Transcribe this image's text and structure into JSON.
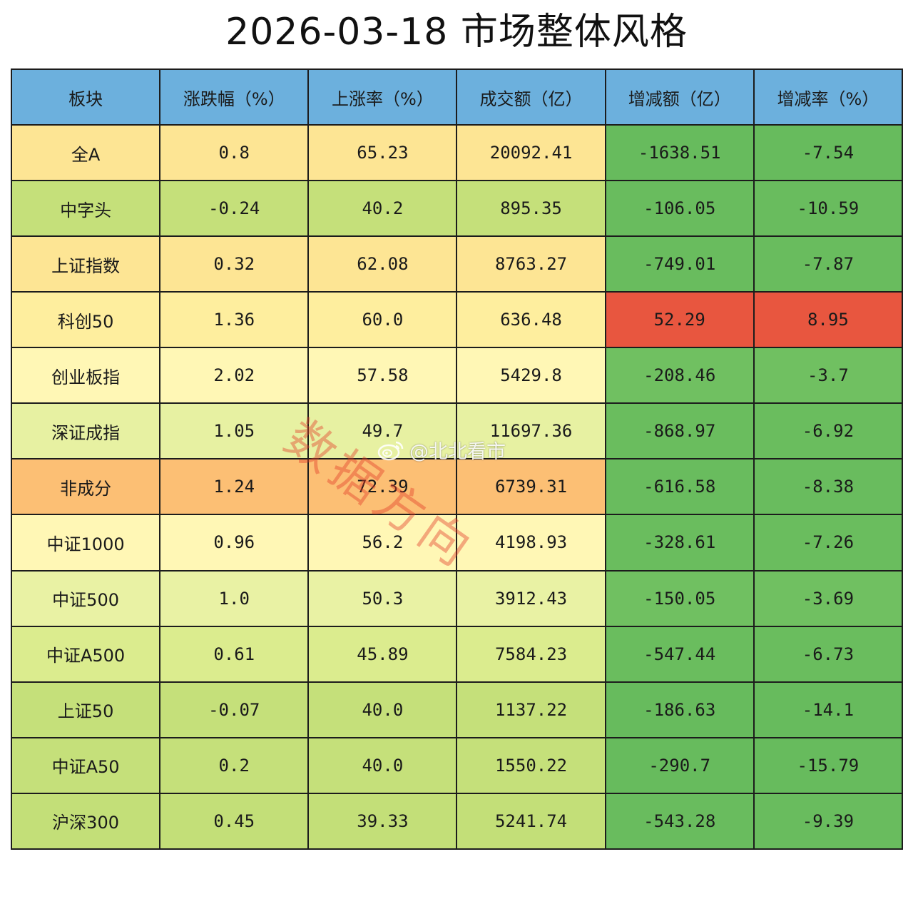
{
  "title": "2026-03-18 市场整体风格",
  "table": {
    "headers": [
      "板块",
      "涨跌幅（%）",
      "上涨率（%）",
      "成交额（亿）",
      "增减额（亿）",
      "增减率（%）"
    ],
    "header_color": "#6cb0dd",
    "rows": [
      {
        "cells": [
          "全A",
          "0.8",
          "65.23",
          "20092.41",
          "-1638.51",
          "-7.54"
        ],
        "colors": [
          "#fde594",
          "#fde594",
          "#fde594",
          "#fde594",
          "#67bb5d",
          "#67bb5d"
        ]
      },
      {
        "cells": [
          "中字头",
          "-0.24",
          "40.2",
          "895.35",
          "-106.05",
          "-10.59"
        ],
        "colors": [
          "#c5e07a",
          "#c5e07a",
          "#c5e07a",
          "#c5e07a",
          "#69bc5e",
          "#69bc5e"
        ]
      },
      {
        "cells": [
          "上证指数",
          "0.32",
          "62.08",
          "8763.27",
          "-749.01",
          "-7.87"
        ],
        "colors": [
          "#fde594",
          "#fde594",
          "#fde594",
          "#fde594",
          "#69bc5e",
          "#69bc5e"
        ]
      },
      {
        "cells": [
          "科创50",
          "1.36",
          "60.0",
          "636.48",
          "52.29",
          "8.95"
        ],
        "colors": [
          "#feee9e",
          "#feee9e",
          "#feee9e",
          "#feee9e",
          "#e8563f",
          "#e8563f"
        ]
      },
      {
        "cells": [
          "创业板指",
          "2.02",
          "57.58",
          "5429.8",
          "-208.46",
          "-3.7"
        ],
        "colors": [
          "#fff7b5",
          "#fff7b5",
          "#fff7b5",
          "#fff7b5",
          "#70c061",
          "#70c061"
        ]
      },
      {
        "cells": [
          "深证成指",
          "1.05",
          "49.7",
          "11697.36",
          "-868.97",
          "-6.92"
        ],
        "colors": [
          "#e7f1a2",
          "#e7f1a2",
          "#e7f1a2",
          "#e7f1a2",
          "#6abd5e",
          "#6abd5e"
        ]
      },
      {
        "cells": [
          "非成分",
          "1.24",
          "72.39",
          "6739.31",
          "-616.58",
          "-8.38"
        ],
        "colors": [
          "#fcbf74",
          "#fcbf74",
          "#fcbf74",
          "#fcbf74",
          "#69bc5e",
          "#69bc5e"
        ]
      },
      {
        "cells": [
          "中证1000",
          "0.96",
          "56.2",
          "4198.93",
          "-328.61",
          "-7.26"
        ],
        "colors": [
          "#fff7b5",
          "#fff7b5",
          "#fff7b5",
          "#fff7b5",
          "#6abd5e",
          "#6abd5e"
        ]
      },
      {
        "cells": [
          "中证500",
          "1.0",
          "50.3",
          "3912.43",
          "-150.05",
          "-3.69"
        ],
        "colors": [
          "#e9f2a4",
          "#e9f2a4",
          "#e9f2a4",
          "#e9f2a4",
          "#70c061",
          "#70c061"
        ]
      },
      {
        "cells": [
          "中证A500",
          "0.61",
          "45.89",
          "7584.23",
          "-547.44",
          "-6.73"
        ],
        "colors": [
          "#dbec8e",
          "#dbec8e",
          "#dbec8e",
          "#dbec8e",
          "#6abd5e",
          "#6abd5e"
        ]
      },
      {
        "cells": [
          "上证50",
          "-0.07",
          "40.0",
          "1137.22",
          "-186.63",
          "-14.1"
        ],
        "colors": [
          "#c5e07a",
          "#c5e07a",
          "#c5e07a",
          "#c5e07a",
          "#67bb5d",
          "#67bb5d"
        ]
      },
      {
        "cells": [
          "中证A50",
          "0.2",
          "40.0",
          "1550.22",
          "-290.7",
          "-15.79"
        ],
        "colors": [
          "#c5e07a",
          "#c5e07a",
          "#c5e07a",
          "#c5e07a",
          "#67bb5d",
          "#67bb5d"
        ]
      },
      {
        "cells": [
          "沪深300",
          "0.45",
          "39.33",
          "5241.74",
          "-543.28",
          "-9.39"
        ],
        "colors": [
          "#c3df78",
          "#c3df78",
          "#c3df78",
          "#c3df78",
          "#69bc5e",
          "#69bc5e"
        ]
      }
    ]
  },
  "watermark": {
    "text": "数据方向",
    "weibo_handle": "@北北看市",
    "weibo_icon": "weibo-icon"
  }
}
